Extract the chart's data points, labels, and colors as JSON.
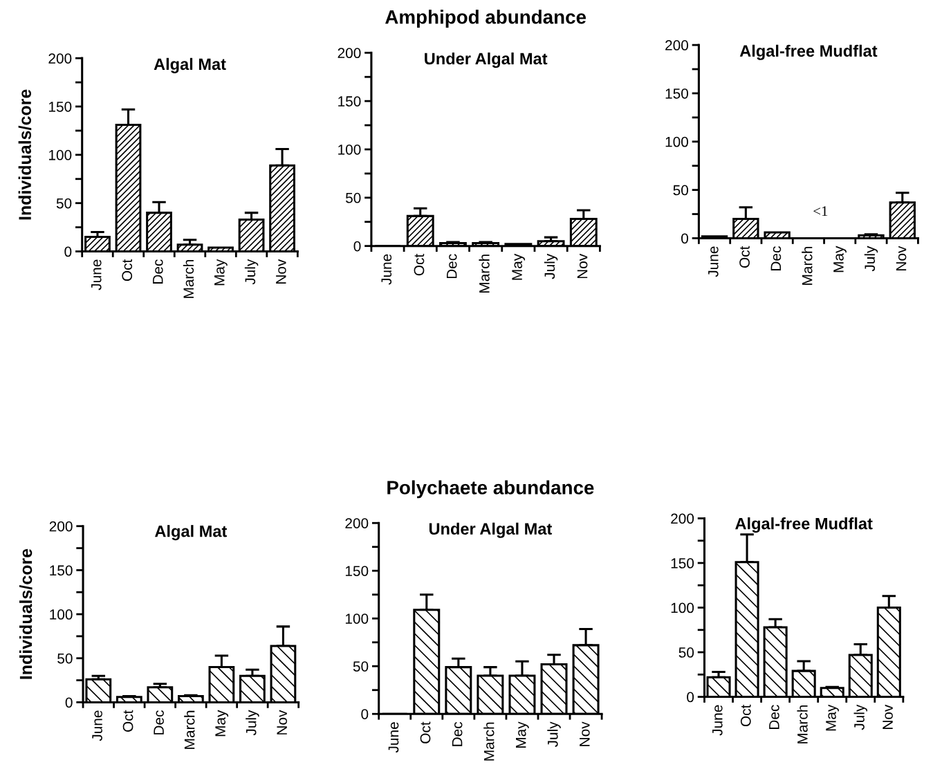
{
  "chart_data": [
    {
      "type": "bar",
      "title": "Algal Mat",
      "ylabel": "Individuals/core",
      "categories": [
        "June",
        "Oct",
        "Dec",
        "March",
        "May",
        "July",
        "Nov"
      ],
      "values": [
        15,
        131,
        40,
        7,
        4,
        33,
        89
      ],
      "color": "#000000",
      "errors": [
        [
          15,
          20
        ],
        [
          131,
          147
        ],
        [
          40,
          51
        ],
        [
          7,
          12
        ],
        null,
        [
          33,
          40
        ],
        [
          89,
          106
        ]
      ],
      "ylim": [
        0,
        200
      ],
      "yticks": [
        0,
        {
          "value": 25,
          "label": null
        },
        50,
        {
          "value": 75,
          "label": null
        },
        100,
        {
          "value": 125,
          "label": null
        },
        150,
        {
          "value": 175,
          "label": null
        },
        200
      ],
      "grid": false
    },
    {
      "type": "bar",
      "title": "Under Algal Mat",
      "annotations": [
        "Amphipod abundance"
      ],
      "categories": [
        "June",
        "Oct",
        "Dec",
        "March",
        "May",
        "July",
        "Nov"
      ],
      "values": [
        0,
        31,
        3,
        3,
        2,
        5,
        28
      ],
      "color": "#000000",
      "errors": [
        null,
        [
          31,
          39
        ],
        [
          3,
          4
        ],
        [
          3,
          4
        ],
        null,
        [
          5,
          9
        ],
        [
          28,
          37
        ]
      ],
      "ylim": [
        0,
        200
      ],
      "yticks": [
        0,
        {
          "value": 25,
          "label": null
        },
        50,
        {
          "value": 75,
          "label": null
        },
        100,
        {
          "value": 125,
          "label": null
        },
        150,
        {
          "value": 175,
          "label": null
        },
        200
      ],
      "grid": false
    },
    {
      "type": "bar",
      "title": "Algal-free Mudflat",
      "annotations": [
        "<1"
      ],
      "categories": [
        "June",
        "Oct",
        "Dec",
        "March",
        "May",
        "July",
        "Nov"
      ],
      "values": [
        2,
        20,
        6,
        0,
        0,
        3,
        37
      ],
      "color": "#000000",
      "errors": [
        null,
        [
          20,
          32
        ],
        null,
        null,
        null,
        [
          3,
          4
        ],
        [
          37,
          47
        ]
      ],
      "ylim": [
        0,
        200
      ],
      "yticks": [
        0,
        {
          "value": 25,
          "label": null
        },
        50,
        {
          "value": 75,
          "label": null
        },
        100,
        {
          "value": 125,
          "label": null
        },
        150,
        {
          "value": 175,
          "label": null
        },
        200
      ],
      "grid": false
    },
    {
      "type": "bar",
      "title": "Algal Mat",
      "ylabel": "Individuals/core",
      "categories": [
        "June",
        "Oct",
        "Dec",
        "March",
        "May",
        "July",
        "Nov"
      ],
      "values": [
        26,
        6,
        17,
        7,
        40,
        30,
        64
      ],
      "color": "#000000",
      "errors": [
        [
          26,
          30
        ],
        [
          6,
          7
        ],
        [
          17,
          21
        ],
        [
          7,
          8
        ],
        [
          40,
          53
        ],
        [
          30,
          37
        ],
        [
          64,
          86
        ]
      ],
      "ylim": [
        0,
        200
      ],
      "yticks": [
        0,
        {
          "value": 25,
          "label": null
        },
        50,
        {
          "value": 75,
          "label": null
        },
        100,
        {
          "value": 125,
          "label": null
        },
        150,
        {
          "value": 175,
          "label": null
        },
        200
      ],
      "grid": false
    },
    {
      "type": "bar",
      "title": "Under Algal Mat",
      "annotations": [
        "Polychaete abundance"
      ],
      "categories": [
        "June",
        "Oct",
        "Dec",
        "March",
        "May",
        "July",
        "Nov"
      ],
      "values": [
        0,
        109,
        49,
        40,
        40,
        52,
        72
      ],
      "color": "#000000",
      "errors": [
        null,
        [
          109,
          125
        ],
        [
          49,
          58
        ],
        [
          40,
          49
        ],
        [
          40,
          55
        ],
        [
          52,
          62
        ],
        [
          72,
          89
        ]
      ],
      "ylim": [
        0,
        200
      ],
      "yticks": [
        0,
        {
          "value": 25,
          "label": null
        },
        50,
        {
          "value": 75,
          "label": null
        },
        100,
        {
          "value": 125,
          "label": null
        },
        150,
        {
          "value": 175,
          "label": null
        },
        200
      ],
      "grid": false
    },
    {
      "type": "bar",
      "title": "Algal-free Mudflat",
      "categories": [
        "June",
        "Oct",
        "Dec",
        "March",
        "May",
        "July",
        "Nov"
      ],
      "values": [
        22,
        151,
        78,
        29,
        10,
        47,
        100
      ],
      "color": "#000000",
      "errors": [
        [
          22,
          28
        ],
        [
          151,
          182
        ],
        [
          78,
          87
        ],
        [
          29,
          40
        ],
        [
          10,
          11
        ],
        [
          47,
          59
        ],
        [
          100,
          113
        ]
      ],
      "ylim": [
        0,
        200
      ],
      "yticks": [
        0,
        {
          "value": 25,
          "label": null
        },
        50,
        {
          "value": 75,
          "label": null
        },
        100,
        {
          "value": 125,
          "label": null
        },
        150,
        {
          "value": 175,
          "label": null
        },
        200
      ],
      "grid": false
    }
  ]
}
